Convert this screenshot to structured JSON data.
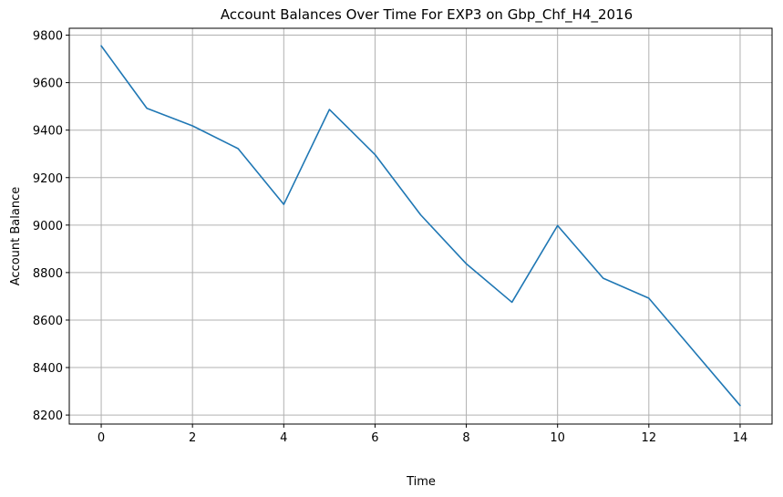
{
  "chart_data": {
    "type": "line",
    "title": "Account Balances Over Time For EXP3 on Gbp_Chf_H4_2016",
    "xlabel": "Time",
    "ylabel": "Account Balance",
    "xlim": [
      -0.7,
      14.7
    ],
    "ylim": [
      8162,
      9829
    ],
    "xticks": [
      0,
      2,
      4,
      6,
      8,
      10,
      12,
      14
    ],
    "yticks": [
      8200,
      8400,
      8600,
      8800,
      9000,
      9200,
      9400,
      9600,
      9800
    ],
    "grid": true,
    "series": [
      {
        "color": "#1f77b4",
        "x": [
          0,
          1,
          2,
          3,
          4,
          5,
          6,
          7,
          8,
          9,
          10,
          11,
          12,
          13,
          14
        ],
        "values": [
          9755,
          9492,
          9418,
          9322,
          9087,
          9487,
          9297,
          9043,
          8837,
          8675,
          8998,
          8776,
          8692,
          8466,
          8240
        ]
      }
    ]
  }
}
